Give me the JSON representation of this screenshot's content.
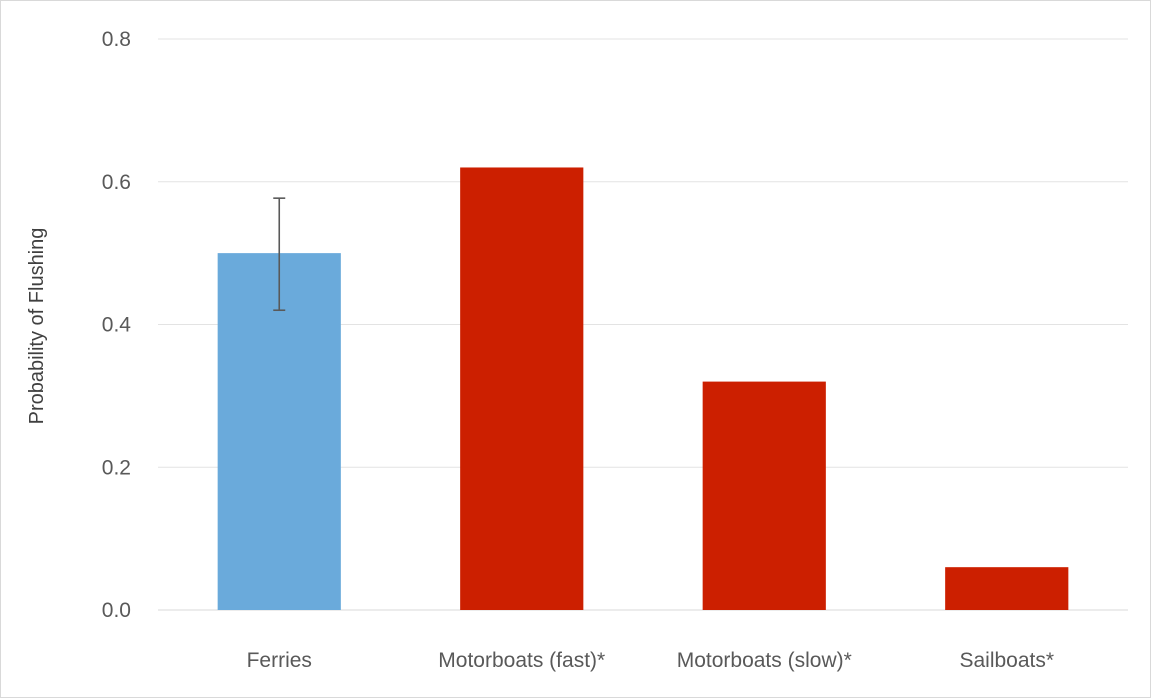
{
  "chart_data": {
    "type": "bar",
    "title": "",
    "xlabel": "",
    "ylabel": "Probability of Flushing",
    "ylim": [
      0,
      0.8
    ],
    "yticks": [
      "0.0",
      "0.2",
      "0.4",
      "0.6",
      "0.8"
    ],
    "categories": [
      "Ferries",
      "Motorboats (fast)*",
      "Motorboats (slow)*",
      "Sailboats*"
    ],
    "values": [
      0.5,
      0.62,
      0.32,
      0.06
    ],
    "bar_colors": [
      "#6aaadb",
      "#cc1f00",
      "#cc1f00",
      "#cc1f00"
    ],
    "error_bars": [
      {
        "category": "Ferries",
        "low": 0.42,
        "high": 0.577
      },
      null,
      null,
      null
    ],
    "grid": true,
    "legend": "none"
  }
}
